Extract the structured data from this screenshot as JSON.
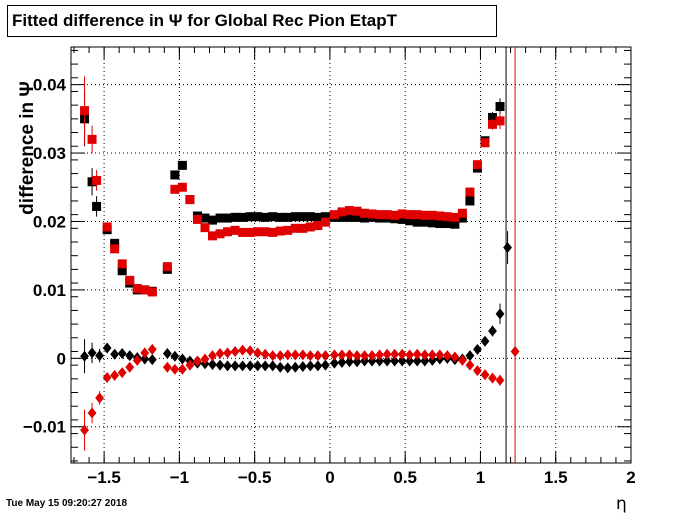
{
  "chart_data": {
    "type": "scatter",
    "title": "Fitted difference in  Ψ  for Global Rec Pion EtapT",
    "xlabel": "η",
    "ylabel": "difference in Ψ",
    "xlim": [
      -1.72,
      2.0
    ],
    "ylim": [
      -0.0153,
      0.0455
    ],
    "grid": true,
    "x_ticks": [
      -1.5,
      -1,
      -0.5,
      0,
      0.5,
      1,
      1.5,
      2
    ],
    "x_tick_labels": [
      "−1.5",
      "−1",
      "−0.5",
      "0",
      "0.5",
      "1",
      "1.5",
      "2"
    ],
    "y_ticks": [
      -0.01,
      0,
      0.01,
      0.02,
      0.03,
      0.04
    ],
    "y_tick_labels": [
      "−0.01",
      "0",
      "0.01",
      "0.02",
      "0.03",
      "0.04"
    ],
    "vertical_lines": [
      {
        "x": 1.17,
        "color": "#000000"
      },
      {
        "x": 1.23,
        "color": "#e00000"
      }
    ],
    "series": [
      {
        "marker": "square",
        "color": "#000000",
        "x": [
          -1.63,
          -1.58,
          -1.55,
          -1.48,
          -1.43,
          -1.38,
          -1.33,
          -1.28,
          -1.23,
          -1.18,
          -1.08,
          -1.03,
          -0.98,
          -0.93,
          -0.88,
          -0.83,
          -0.78,
          -0.73,
          -0.68,
          -0.63,
          -0.58,
          -0.53,
          -0.48,
          -0.43,
          -0.38,
          -0.33,
          -0.28,
          -0.23,
          -0.18,
          -0.13,
          -0.08,
          -0.03,
          0.03,
          0.08,
          0.13,
          0.18,
          0.23,
          0.28,
          0.33,
          0.38,
          0.43,
          0.48,
          0.53,
          0.58,
          0.63,
          0.68,
          0.73,
          0.78,
          0.83,
          0.88,
          0.93,
          0.98,
          1.03,
          1.08,
          1.13
        ],
        "y": [
          0.035,
          0.0258,
          0.0222,
          0.0188,
          0.0168,
          0.0128,
          0.011,
          0.01,
          0.01,
          0.0098,
          0.013,
          0.0268,
          0.0282,
          0.0232,
          0.0208,
          0.0205,
          0.0202,
          0.0205,
          0.0205,
          0.0206,
          0.0206,
          0.0207,
          0.0207,
          0.0206,
          0.0207,
          0.0206,
          0.0206,
          0.0207,
          0.0207,
          0.0207,
          0.0206,
          0.0207,
          0.0206,
          0.0206,
          0.0206,
          0.0206,
          0.0205,
          0.0206,
          0.0205,
          0.0205,
          0.0204,
          0.0203,
          0.0201,
          0.0199,
          0.0199,
          0.0198,
          0.0197,
          0.0197,
          0.0196,
          0.0205,
          0.023,
          0.0278,
          0.0318,
          0.0352,
          0.0368
        ],
        "err": [
          0.004,
          0.002,
          0.0015,
          0.0005,
          0.0005,
          0.0004,
          0.0003,
          0.0003,
          0.0003,
          0.0003,
          0.0004,
          0.0005,
          0.0004,
          0.0004,
          0.0002,
          0.0002,
          0.0002,
          0.0002,
          0.0002,
          0.0002,
          0.0002,
          0.0002,
          0.0002,
          0.0002,
          0.0002,
          0.0002,
          0.0002,
          0.0002,
          0.0002,
          0.0002,
          0.0002,
          0.0002,
          0.0002,
          0.0002,
          0.0002,
          0.0002,
          0.0002,
          0.0002,
          0.0002,
          0.0002,
          0.0002,
          0.0002,
          0.0002,
          0.0002,
          0.0002,
          0.0002,
          0.0002,
          0.0002,
          0.0002,
          0.0003,
          0.0004,
          0.0005,
          0.0006,
          0.0008,
          0.0012
        ]
      },
      {
        "marker": "square",
        "color": "#e00000",
        "x": [
          -1.63,
          -1.58,
          -1.55,
          -1.48,
          -1.43,
          -1.38,
          -1.33,
          -1.28,
          -1.23,
          -1.18,
          -1.08,
          -1.03,
          -0.98,
          -0.93,
          -0.88,
          -0.83,
          -0.78,
          -0.73,
          -0.68,
          -0.63,
          -0.58,
          -0.53,
          -0.48,
          -0.43,
          -0.38,
          -0.33,
          -0.28,
          -0.23,
          -0.18,
          -0.13,
          -0.08,
          -0.03,
          0.03,
          0.08,
          0.13,
          0.18,
          0.23,
          0.28,
          0.33,
          0.38,
          0.43,
          0.48,
          0.53,
          0.58,
          0.63,
          0.68,
          0.73,
          0.78,
          0.83,
          0.88,
          0.93,
          0.98,
          1.03,
          1.08,
          1.13
        ],
        "y": [
          0.0362,
          0.032,
          0.026,
          0.0192,
          0.016,
          0.0138,
          0.0114,
          0.0102,
          0.01,
          0.0097,
          0.0134,
          0.0247,
          0.025,
          0.0232,
          0.0203,
          0.0191,
          0.0179,
          0.0182,
          0.0185,
          0.0187,
          0.0184,
          0.0184,
          0.0185,
          0.0185,
          0.0184,
          0.0186,
          0.0187,
          0.019,
          0.019,
          0.0192,
          0.0194,
          0.0199,
          0.021,
          0.0214,
          0.0216,
          0.0215,
          0.0212,
          0.0211,
          0.021,
          0.021,
          0.0209,
          0.0211,
          0.021,
          0.021,
          0.0209,
          0.0209,
          0.0208,
          0.0207,
          0.0206,
          0.0212,
          0.0243,
          0.0283,
          0.0315,
          0.0342,
          0.0347
        ],
        "err": [
          0.005,
          0.002,
          0.0015,
          0.0005,
          0.0005,
          0.0004,
          0.0003,
          0.0003,
          0.0003,
          0.0003,
          0.0004,
          0.0005,
          0.0004,
          0.0004,
          0.0002,
          0.0002,
          0.0002,
          0.0002,
          0.0002,
          0.0002,
          0.0002,
          0.0002,
          0.0002,
          0.0002,
          0.0002,
          0.0002,
          0.0002,
          0.0002,
          0.0002,
          0.0002,
          0.0002,
          0.0002,
          0.0002,
          0.0002,
          0.0002,
          0.0002,
          0.0002,
          0.0002,
          0.0002,
          0.0002,
          0.0002,
          0.0002,
          0.0002,
          0.0002,
          0.0002,
          0.0002,
          0.0002,
          0.0002,
          0.0002,
          0.0003,
          0.0004,
          0.0005,
          0.0006,
          0.0008,
          0.0012
        ]
      },
      {
        "marker": "diamond",
        "color": "#000000",
        "x": [
          -1.63,
          -1.58,
          -1.53,
          -1.48,
          -1.43,
          -1.38,
          -1.33,
          -1.28,
          -1.23,
          -1.18,
          -1.08,
          -1.03,
          -0.98,
          -0.93,
          -0.88,
          -0.83,
          -0.78,
          -0.73,
          -0.68,
          -0.63,
          -0.58,
          -0.53,
          -0.48,
          -0.43,
          -0.38,
          -0.33,
          -0.28,
          -0.23,
          -0.18,
          -0.13,
          -0.08,
          -0.03,
          0.03,
          0.08,
          0.13,
          0.18,
          0.23,
          0.28,
          0.33,
          0.38,
          0.43,
          0.48,
          0.53,
          0.58,
          0.63,
          0.68,
          0.73,
          0.78,
          0.83,
          0.88,
          0.93,
          0.98,
          1.03,
          1.08,
          1.13,
          1.18
        ],
        "y": [
          0.0003,
          0.0008,
          0.0004,
          0.0015,
          0.0006,
          0.0007,
          0.0004,
          0.0001,
          -0.0001,
          -0.0002,
          0.0007,
          0.0003,
          -0.0001,
          -0.0004,
          -0.0007,
          -0.0008,
          -0.0009,
          -0.001,
          -0.0011,
          -0.0011,
          -0.0011,
          -0.0011,
          -0.0011,
          -0.0011,
          -0.0011,
          -0.0013,
          -0.0014,
          -0.0013,
          -0.0012,
          -0.0011,
          -0.0011,
          -0.001,
          -0.0007,
          -0.0006,
          -0.0005,
          -0.0005,
          -0.0004,
          -0.0004,
          -0.0004,
          -0.0004,
          -0.0004,
          -0.0004,
          -0.0004,
          -0.0004,
          -0.0004,
          -0.0003,
          -0.0001,
          0.0,
          -0.0002,
          -0.0001,
          0.0004,
          0.0013,
          0.0025,
          0.004,
          0.0065,
          0.0162
        ],
        "err": [
          0.0025,
          0.0015,
          0.001,
          0.0003,
          0.0002,
          0.0002,
          0.0002,
          0.0002,
          0.0002,
          0.0002,
          0.0002,
          0.0002,
          0.0002,
          0.0002,
          0.0001,
          0.0001,
          0.0001,
          0.0001,
          0.0001,
          0.0001,
          0.0001,
          0.0001,
          0.0001,
          0.0001,
          0.0001,
          0.0001,
          0.0001,
          0.0001,
          0.0001,
          0.0001,
          0.0001,
          0.0001,
          0.0001,
          0.0001,
          0.0001,
          0.0001,
          0.0001,
          0.0001,
          0.0001,
          0.0001,
          0.0001,
          0.0001,
          0.0001,
          0.0001,
          0.0001,
          0.0001,
          0.0001,
          0.0001,
          0.0001,
          0.0002,
          0.0003,
          0.0004,
          0.0006,
          0.0008,
          0.0015,
          0.0024
        ]
      },
      {
        "marker": "diamond",
        "color": "#e00000",
        "x": [
          -1.63,
          -1.58,
          -1.53,
          -1.48,
          -1.43,
          -1.38,
          -1.33,
          -1.28,
          -1.23,
          -1.18,
          -1.08,
          -1.03,
          -0.98,
          -0.93,
          -0.88,
          -0.83,
          -0.78,
          -0.73,
          -0.68,
          -0.63,
          -0.58,
          -0.53,
          -0.48,
          -0.43,
          -0.38,
          -0.33,
          -0.28,
          -0.23,
          -0.18,
          -0.13,
          -0.08,
          -0.03,
          0.03,
          0.08,
          0.13,
          0.18,
          0.23,
          0.28,
          0.33,
          0.38,
          0.43,
          0.48,
          0.53,
          0.58,
          0.63,
          0.68,
          0.73,
          0.78,
          0.83,
          0.88,
          0.93,
          0.98,
          1.03,
          1.08,
          1.13,
          1.23
        ],
        "y": [
          -0.0105,
          -0.008,
          -0.0058,
          -0.0028,
          -0.0025,
          -0.0021,
          -0.0013,
          -0.0003,
          0.0008,
          0.0013,
          -0.0013,
          -0.0016,
          -0.0016,
          -0.001,
          -0.0004,
          -0.0001,
          0.0004,
          0.0007,
          0.0008,
          0.001,
          0.0012,
          0.0011,
          0.0008,
          0.0006,
          0.0004,
          0.0004,
          0.0005,
          0.0005,
          0.0005,
          0.0004,
          0.0004,
          0.0004,
          0.0005,
          0.0005,
          0.0005,
          0.0004,
          0.0004,
          0.0004,
          0.0005,
          0.0006,
          0.0006,
          0.0006,
          0.0005,
          0.0006,
          0.0005,
          0.0005,
          0.0005,
          0.0004,
          0.0002,
          -0.0003,
          -0.001,
          -0.0018,
          -0.0024,
          -0.0029,
          -0.0032,
          0.001
        ],
        "err": [
          0.003,
          0.0015,
          0.001,
          0.0005,
          0.0003,
          0.0002,
          0.0002,
          0.0002,
          0.0002,
          0.0002,
          0.0002,
          0.0002,
          0.0002,
          0.0002,
          0.0001,
          0.0001,
          0.0001,
          0.0001,
          0.0001,
          0.0001,
          0.0001,
          0.0001,
          0.0001,
          0.0001,
          0.0001,
          0.0001,
          0.0001,
          0.0001,
          0.0001,
          0.0001,
          0.0001,
          0.0001,
          0.0001,
          0.0001,
          0.0001,
          0.0001,
          0.0001,
          0.0001,
          0.0001,
          0.0001,
          0.0001,
          0.0001,
          0.0001,
          0.0001,
          0.0001,
          0.0001,
          0.0001,
          0.0001,
          0.0001,
          0.0002,
          0.0003,
          0.0004,
          0.0005,
          0.0006,
          0.0008,
          0.0003
        ]
      }
    ]
  },
  "timestamp": "Tue May 15 09:20:27 2018"
}
